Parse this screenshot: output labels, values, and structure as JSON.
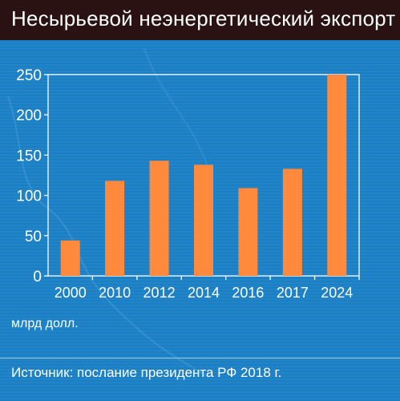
{
  "title": "Несырьевой неэнергетический экспорт",
  "unit_label": "млрд долл.",
  "source": "Источник: послание президента РФ 2018 г.",
  "colors": {
    "background": "#1a7fc4",
    "title_bar": "#2a1212",
    "bar": "#ff8a3d",
    "axis": "#ffffff",
    "text": "#ffffff"
  },
  "chart_data": {
    "type": "bar",
    "categories": [
      "2000",
      "2010",
      "2012",
      "2014",
      "2016",
      "2017",
      "2024"
    ],
    "values": [
      44,
      118,
      143,
      138,
      109,
      133,
      250
    ],
    "ylim": [
      0,
      250
    ],
    "yticks": [
      "0",
      "50",
      "100",
      "150",
      "200",
      "250"
    ],
    "grid": false,
    "legend": "none"
  }
}
